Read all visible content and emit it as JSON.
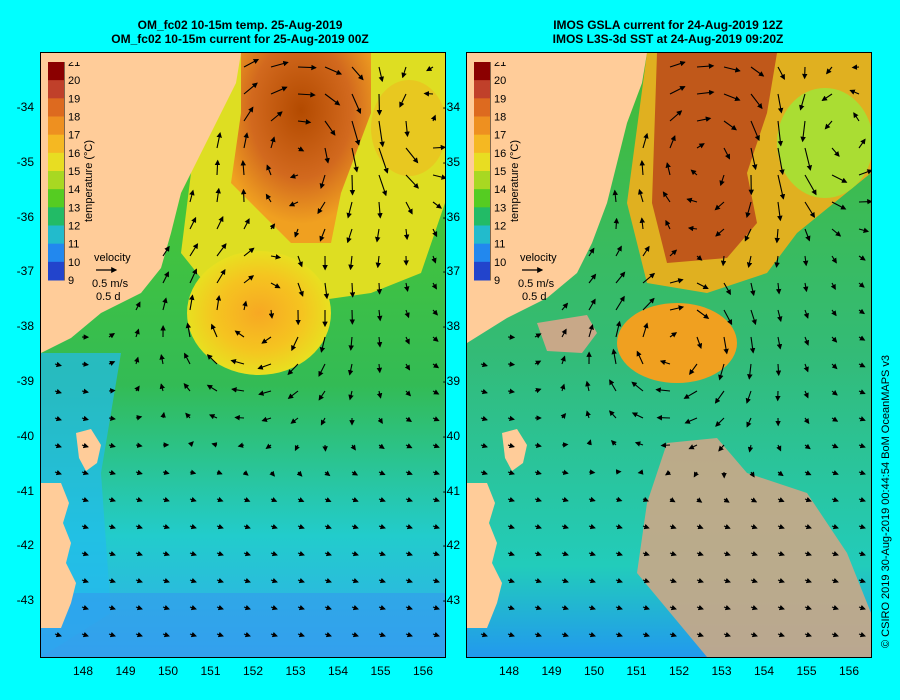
{
  "left_panel": {
    "title_line1": "OM_fc02 10-15m temp. 25-Aug-2019",
    "title_line2": "OM_fc02 10-15m current for 25-Aug-2019 00Z"
  },
  "right_panel": {
    "title_line1": "IMOS GSLA current for 24-Aug-2019 12Z",
    "title_line2": "IMOS L3S-3d SST at 24-Aug-2019 09:20Z"
  },
  "colorbar": {
    "label": "temperature (°C)",
    "ticks": [
      "21",
      "20",
      "19",
      "18",
      "17",
      "16",
      "15",
      "14",
      "13",
      "12",
      "11",
      "10",
      "9"
    ]
  },
  "velocity_key": {
    "label": "velocity",
    "speed": "0.5 m/s",
    "duration": "0.5 d"
  },
  "latitude_labels": [
    "-34",
    "-35",
    "-36",
    "-37",
    "-38",
    "-39",
    "-40",
    "-41",
    "-42",
    "-43"
  ],
  "longitude_labels": [
    "148",
    "149",
    "150",
    "151",
    "152",
    "153",
    "154",
    "155",
    "156"
  ],
  "credit": "© CSIRO 2019   30-Aug-2019 00:44:54 BoM OceanMAPS v3",
  "colors": {
    "background": "#00ffff",
    "land": "#ffcc99",
    "missing_data": "#c8a888"
  }
}
